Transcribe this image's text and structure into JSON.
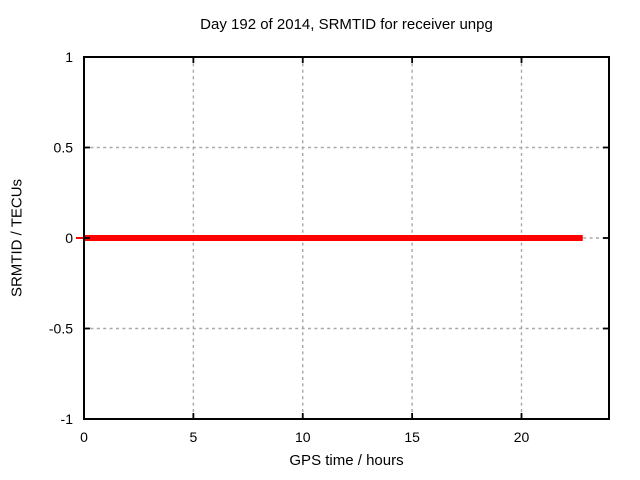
{
  "chart_data": {
    "type": "line",
    "title": "Day 192 of 2014, SRMTID for receiver unpg",
    "xlabel": "GPS time / hours",
    "ylabel": "SRMTID / TECUs",
    "xlim": [
      0,
      24
    ],
    "ylim": [
      -1,
      1
    ],
    "xticks": [
      0,
      5,
      10,
      15,
      20
    ],
    "xtick_labels": [
      "0",
      "5",
      "10",
      "15",
      "20"
    ],
    "yticks": [
      -1,
      -0.5,
      0,
      0.5,
      1
    ],
    "ytick_labels": [
      "-1",
      "-0.5",
      "0",
      "0.5",
      "1"
    ],
    "grid": true,
    "legend_position": "none",
    "colors": {
      "background": "#ffffff",
      "border": "#000000",
      "grid": "#a8a8a8",
      "text": "#000000",
      "series_red": "#ff0000"
    },
    "series": [
      {
        "name": "SRMTID",
        "color": "#ff0000",
        "linewidth": 6,
        "x": [
          0,
          22.8
        ],
        "y": [
          0,
          0
        ]
      }
    ]
  }
}
